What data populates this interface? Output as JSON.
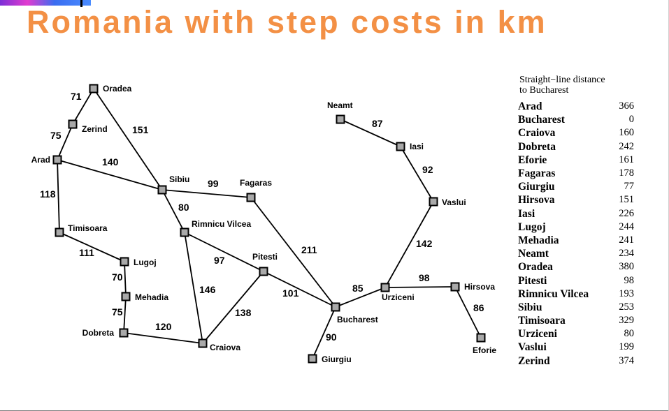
{
  "title": "Romania with step costs in km",
  "map": {
    "cities": [
      {
        "id": "oradea",
        "label": "Oradea"
      },
      {
        "id": "zerind",
        "label": "Zerind"
      },
      {
        "id": "arad",
        "label": "Arad"
      },
      {
        "id": "timisoara",
        "label": "Timisoara"
      },
      {
        "id": "lugoj",
        "label": "Lugoj"
      },
      {
        "id": "mehadia",
        "label": "Mehadia"
      },
      {
        "id": "dobreta",
        "label": "Dobreta"
      },
      {
        "id": "craiova",
        "label": "Craiova"
      },
      {
        "id": "sibiu",
        "label": "Sibiu"
      },
      {
        "id": "rimnicu",
        "label": "Rimnicu Vilcea"
      },
      {
        "id": "fagaras",
        "label": "Fagaras"
      },
      {
        "id": "pitesti",
        "label": "Pitesti"
      },
      {
        "id": "bucharest",
        "label": "Bucharest"
      },
      {
        "id": "giurgiu",
        "label": "Giurgiu"
      },
      {
        "id": "urziceni",
        "label": "Urziceni"
      },
      {
        "id": "hirsova",
        "label": "Hirsova"
      },
      {
        "id": "eforie",
        "label": "Eforie"
      },
      {
        "id": "vaslui",
        "label": "Vaslui"
      },
      {
        "id": "iasi",
        "label": "Iasi"
      },
      {
        "id": "neamt",
        "label": "Neamt"
      }
    ],
    "roads": [
      {
        "from": "oradea",
        "to": "zerind",
        "cost": "71"
      },
      {
        "from": "zerind",
        "to": "arad",
        "cost": "75"
      },
      {
        "from": "oradea",
        "to": "sibiu",
        "cost": "151"
      },
      {
        "from": "arad",
        "to": "sibiu",
        "cost": "140"
      },
      {
        "from": "arad",
        "to": "timisoara",
        "cost": "118"
      },
      {
        "from": "timisoara",
        "to": "lugoj",
        "cost": "111"
      },
      {
        "from": "lugoj",
        "to": "mehadia",
        "cost": "70"
      },
      {
        "from": "mehadia",
        "to": "dobreta",
        "cost": "75"
      },
      {
        "from": "dobreta",
        "to": "craiova",
        "cost": "120"
      },
      {
        "from": "sibiu",
        "to": "fagaras",
        "cost": "99"
      },
      {
        "from": "sibiu",
        "to": "rimnicu",
        "cost": "80"
      },
      {
        "from": "rimnicu",
        "to": "pitesti",
        "cost": "97"
      },
      {
        "from": "rimnicu",
        "to": "craiova",
        "cost": "146"
      },
      {
        "from": "craiova",
        "to": "pitesti",
        "cost": "138"
      },
      {
        "from": "fagaras",
        "to": "bucharest",
        "cost": "211"
      },
      {
        "from": "pitesti",
        "to": "bucharest",
        "cost": "101"
      },
      {
        "from": "bucharest",
        "to": "giurgiu",
        "cost": "90"
      },
      {
        "from": "bucharest",
        "to": "urziceni",
        "cost": "85"
      },
      {
        "from": "urziceni",
        "to": "hirsova",
        "cost": "98"
      },
      {
        "from": "hirsova",
        "to": "eforie",
        "cost": "86"
      },
      {
        "from": "urziceni",
        "to": "vaslui",
        "cost": "142"
      },
      {
        "from": "vaslui",
        "to": "iasi",
        "cost": "92"
      },
      {
        "from": "iasi",
        "to": "neamt",
        "cost": "87"
      }
    ]
  },
  "straight_line": {
    "caption_line1": "Straight−line distance",
    "caption_line2": "to Bucharest",
    "rows": [
      {
        "city": "Arad",
        "distance": "366"
      },
      {
        "city": "Bucharest",
        "distance": "0"
      },
      {
        "city": "Craiova",
        "distance": "160"
      },
      {
        "city": "Dobreta",
        "distance": "242"
      },
      {
        "city": "Eforie",
        "distance": "161"
      },
      {
        "city": "Fagaras",
        "distance": "178"
      },
      {
        "city": "Giurgiu",
        "distance": "77"
      },
      {
        "city": "Hirsova",
        "distance": "151"
      },
      {
        "city": "Iasi",
        "distance": "226"
      },
      {
        "city": "Lugoj",
        "distance": "244"
      },
      {
        "city": "Mehadia",
        "distance": "241"
      },
      {
        "city": "Neamt",
        "distance": "234"
      },
      {
        "city": "Oradea",
        "distance": "380"
      },
      {
        "city": "Pitesti",
        "distance": "98"
      },
      {
        "city": "Rimnicu Vilcea",
        "distance": "193"
      },
      {
        "city": "Sibiu",
        "distance": "253"
      },
      {
        "city": "Timisoara",
        "distance": "329"
      },
      {
        "city": "Urziceni",
        "distance": "80"
      },
      {
        "city": "Vaslui",
        "distance": "199"
      },
      {
        "city": "Zerind",
        "distance": "374"
      }
    ]
  }
}
